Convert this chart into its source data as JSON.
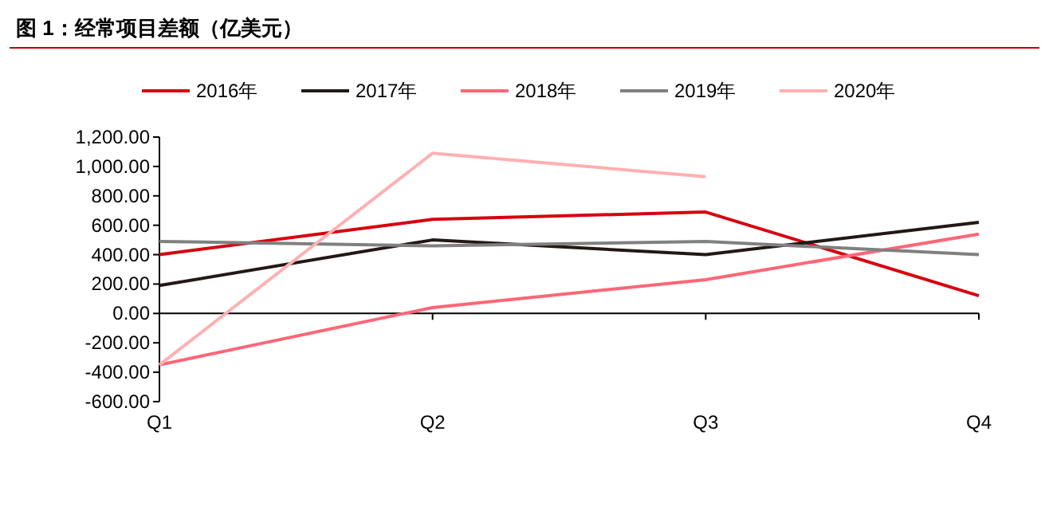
{
  "chart_data": {
    "type": "line",
    "title": "图 1：经常项目差额（亿美元）",
    "categories": [
      "Q1",
      "Q2",
      "Q3",
      "Q4"
    ],
    "series": [
      {
        "name": "2016年",
        "color": "#d7000f",
        "values": [
          400,
          640,
          690,
          120
        ]
      },
      {
        "name": "2017年",
        "color": "#231815",
        "values": [
          190,
          500,
          400,
          620
        ]
      },
      {
        "name": "2018年",
        "color": "#ff6677",
        "values": [
          -350,
          40,
          230,
          540
        ]
      },
      {
        "name": "2019年",
        "color": "#808080",
        "values": [
          490,
          460,
          490,
          400
        ]
      },
      {
        "name": "2020年",
        "color": "#ffb0b0",
        "values": [
          -350,
          1090,
          930,
          null
        ]
      }
    ],
    "ylim": [
      -600,
      1200
    ],
    "yticks": [
      {
        "value": -600,
        "label": "-600.00"
      },
      {
        "value": -400,
        "label": "-400.00"
      },
      {
        "value": -200,
        "label": "-200.00"
      },
      {
        "value": 0,
        "label": "0.00"
      },
      {
        "value": 200,
        "label": "200.00"
      },
      {
        "value": 400,
        "label": "400.00"
      },
      {
        "value": 600,
        "label": "600.00"
      },
      {
        "value": 800,
        "label": "800.00"
      },
      {
        "value": 1000,
        "label": "1,000.00"
      },
      {
        "value": 1200,
        "label": "1,200.00"
      }
    ],
    "legend": "top",
    "marker": "none",
    "line_style": "solid"
  }
}
